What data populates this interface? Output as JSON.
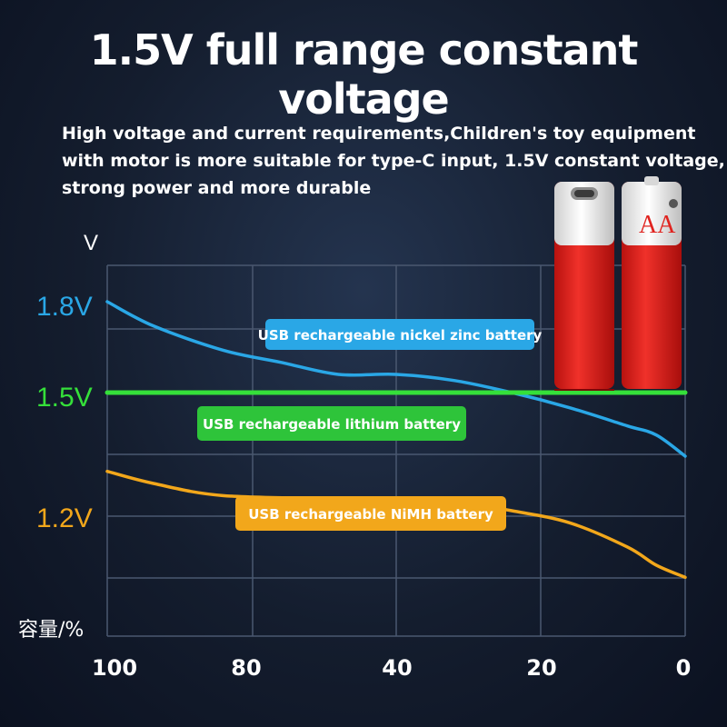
{
  "title": "1.5V full range constant voltage",
  "subtitle_lines": [
    "High voltage and current requirements,Children's toy equipment",
    "with motor is more suitable for type-C input, 1.5V constant voltage,",
    "strong power and more durable"
  ],
  "battery_label": "AA",
  "colors": {
    "nickel_zinc": "#2aa7e6",
    "lithium": "#35e03a",
    "nimh": "#f2a71b",
    "grid": "#4a5870",
    "battery_red": "#e0231f"
  },
  "chart_data": {
    "type": "line",
    "ylabel": "V",
    "xlabel": "容量/%",
    "x_ticks": [
      "100",
      "80",
      "40",
      "20",
      "0"
    ],
    "y_ticks": [
      "1.8V",
      "1.5V",
      "1.2V"
    ],
    "x_direction": "descending",
    "grid": true,
    "series": [
      {
        "name": "USB rechargeable nickel zinc battery",
        "key": "nickel_zinc",
        "label_color": "#2aa7e6",
        "points": [
          [
            100,
            1.8
          ],
          [
            92,
            1.72
          ],
          [
            80,
            1.64
          ],
          [
            70,
            1.6
          ],
          [
            60,
            1.56
          ],
          [
            50,
            1.56
          ],
          [
            40,
            1.54
          ],
          [
            30,
            1.5
          ],
          [
            20,
            1.45
          ],
          [
            10,
            1.39
          ],
          [
            5,
            1.36
          ],
          [
            0,
            1.29
          ]
        ]
      },
      {
        "name": "USB rechargeable lithium battery",
        "key": "lithium",
        "label_color": "#2ec43a",
        "points": [
          [
            100,
            1.5
          ],
          [
            0,
            1.5
          ]
        ]
      },
      {
        "name": "USB rechargeable NiMH battery",
        "key": "nimh",
        "label_color": "#f2a71b",
        "points": [
          [
            100,
            1.24
          ],
          [
            92,
            1.2
          ],
          [
            80,
            1.16
          ],
          [
            60,
            1.15
          ],
          [
            50,
            1.15
          ],
          [
            40,
            1.14
          ],
          [
            30,
            1.11
          ],
          [
            20,
            1.07
          ],
          [
            10,
            0.99
          ],
          [
            5,
            0.93
          ],
          [
            0,
            0.89
          ]
        ]
      }
    ]
  }
}
